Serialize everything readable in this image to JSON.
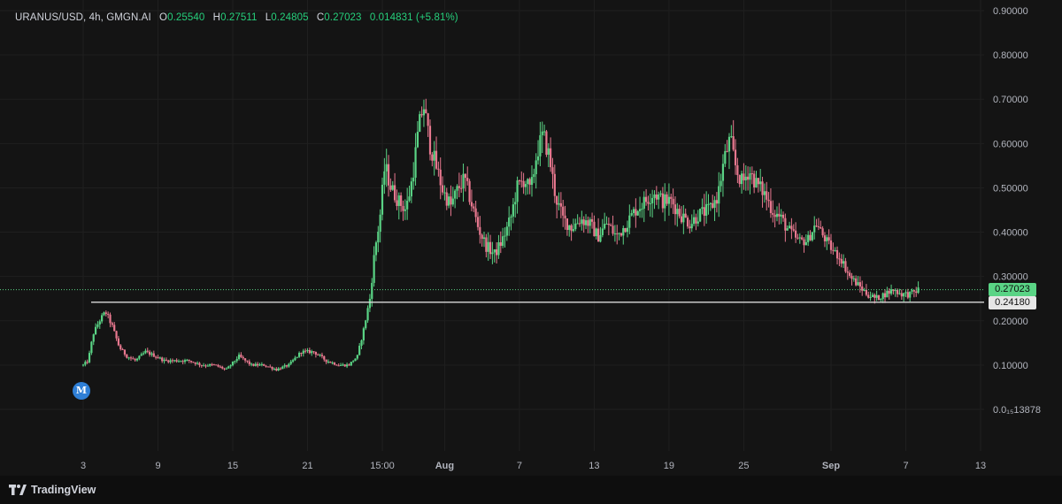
{
  "header": {
    "symbol": "URANUS/USD, 4h, GMGN.AI",
    "open_label": "O",
    "open_value": "0.25540",
    "high_label": "H",
    "high_value": "0.27511",
    "low_label": "L",
    "low_value": "0.24805",
    "close_label": "C",
    "close_value": "0.27023",
    "change_value": "0.014831 (+5.81%)"
  },
  "price_tags": {
    "current": "0.27023",
    "level": "0.24180"
  },
  "marker": {
    "label": "M"
  },
  "footer": {
    "brand": "TradingView",
    "logo_icon": "tradingview-logo-icon"
  },
  "colors": {
    "up": "#5ad485",
    "down": "#e8788f",
    "background": "#141414",
    "grid": "#1f1f1f",
    "level_line": "#d9d9d9",
    "marker": "#2f7fd6"
  },
  "chart_data": {
    "type": "candlestick",
    "timeframe": "4h",
    "ylim": [
      0.05,
      0.9
    ],
    "y_ticks": [
      {
        "value": 0.9,
        "label": "0.90000"
      },
      {
        "value": 0.8,
        "label": "0.80000"
      },
      {
        "value": 0.7,
        "label": "0.70000"
      },
      {
        "value": 0.6,
        "label": "0.60000"
      },
      {
        "value": 0.5,
        "label": "0.50000"
      },
      {
        "value": 0.4,
        "label": "0.40000"
      },
      {
        "value": 0.3,
        "label": "0.30000"
      },
      {
        "value": 0.2,
        "label": "0.20000"
      },
      {
        "value": 0.1,
        "label": "0.10000"
      },
      {
        "value": 0.0,
        "label": "0.0₁₅13878"
      }
    ],
    "x_ticks": [
      {
        "day": 3,
        "label": "3"
      },
      {
        "day": 9,
        "label": "9"
      },
      {
        "day": 15,
        "label": "15"
      },
      {
        "day": 21,
        "label": "21"
      },
      {
        "day": 27,
        "label": "15:00"
      },
      {
        "day": 32,
        "label": "Aug"
      },
      {
        "day": 38,
        "label": "7"
      },
      {
        "day": 44,
        "label": "13"
      },
      {
        "day": 50,
        "label": "19"
      },
      {
        "day": 56,
        "label": "25"
      },
      {
        "day": 63,
        "label": "Sep"
      },
      {
        "day": 69,
        "label": "7"
      },
      {
        "day": 75,
        "label": "13"
      }
    ],
    "bold_ticks": [
      "Aug",
      "Sep"
    ],
    "xlim": [
      3,
      75
    ],
    "price_path": [
      [
        3.0,
        0.1
      ],
      [
        3.4,
        0.11
      ],
      [
        3.8,
        0.17
      ],
      [
        4.3,
        0.2
      ],
      [
        4.8,
        0.22
      ],
      [
        5.3,
        0.19
      ],
      [
        5.9,
        0.14
      ],
      [
        6.5,
        0.12
      ],
      [
        7.2,
        0.11
      ],
      [
        8.0,
        0.13
      ],
      [
        8.8,
        0.12
      ],
      [
        9.5,
        0.11
      ],
      [
        10.5,
        0.11
      ],
      [
        11.5,
        0.11
      ],
      [
        12.5,
        0.1
      ],
      [
        13.5,
        0.1
      ],
      [
        14.5,
        0.09
      ],
      [
        15.5,
        0.12
      ],
      [
        16.5,
        0.1
      ],
      [
        17.5,
        0.1
      ],
      [
        18.5,
        0.09
      ],
      [
        19.5,
        0.1
      ],
      [
        20.5,
        0.13
      ],
      [
        21.5,
        0.13
      ],
      [
        22.5,
        0.11
      ],
      [
        23.5,
        0.1
      ],
      [
        24.3,
        0.1
      ],
      [
        25.0,
        0.12
      ],
      [
        25.5,
        0.18
      ],
      [
        26.0,
        0.25
      ],
      [
        26.4,
        0.36
      ],
      [
        26.8,
        0.43
      ],
      [
        27.2,
        0.55
      ],
      [
        27.7,
        0.5
      ],
      [
        28.3,
        0.47
      ],
      [
        28.9,
        0.45
      ],
      [
        29.4,
        0.52
      ],
      [
        29.9,
        0.63
      ],
      [
        30.3,
        0.69
      ],
      [
        30.8,
        0.6
      ],
      [
        31.3,
        0.55
      ],
      [
        31.9,
        0.49
      ],
      [
        32.5,
        0.46
      ],
      [
        33.1,
        0.5
      ],
      [
        33.6,
        0.52
      ],
      [
        34.2,
        0.46
      ],
      [
        34.7,
        0.41
      ],
      [
        35.3,
        0.37
      ],
      [
        36.0,
        0.35
      ],
      [
        36.6,
        0.38
      ],
      [
        37.3,
        0.43
      ],
      [
        37.8,
        0.5
      ],
      [
        38.4,
        0.52
      ],
      [
        38.9,
        0.49
      ],
      [
        39.4,
        0.58
      ],
      [
        39.9,
        0.62
      ],
      [
        40.4,
        0.57
      ],
      [
        40.9,
        0.48
      ],
      [
        41.5,
        0.43
      ],
      [
        42.2,
        0.41
      ],
      [
        42.9,
        0.43
      ],
      [
        43.6,
        0.42
      ],
      [
        44.3,
        0.39
      ],
      [
        45.0,
        0.42
      ],
      [
        45.8,
        0.39
      ],
      [
        46.6,
        0.42
      ],
      [
        47.3,
        0.45
      ],
      [
        48.1,
        0.47
      ],
      [
        48.8,
        0.49
      ],
      [
        49.5,
        0.47
      ],
      [
        50.2,
        0.47
      ],
      [
        50.9,
        0.44
      ],
      [
        51.7,
        0.42
      ],
      [
        52.4,
        0.44
      ],
      [
        53.2,
        0.45
      ],
      [
        53.9,
        0.48
      ],
      [
        54.4,
        0.56
      ],
      [
        54.9,
        0.61
      ],
      [
        55.4,
        0.54
      ],
      [
        55.9,
        0.51
      ],
      [
        56.4,
        0.54
      ],
      [
        57.0,
        0.51
      ],
      [
        57.6,
        0.49
      ],
      [
        58.3,
        0.45
      ],
      [
        59.0,
        0.43
      ],
      [
        59.7,
        0.4
      ],
      [
        60.4,
        0.38
      ],
      [
        61.1,
        0.38
      ],
      [
        61.8,
        0.42
      ],
      [
        62.4,
        0.39
      ],
      [
        63.1,
        0.36
      ],
      [
        63.8,
        0.34
      ],
      [
        64.5,
        0.3
      ],
      [
        65.2,
        0.28
      ],
      [
        65.9,
        0.26
      ],
      [
        66.6,
        0.25
      ],
      [
        67.3,
        0.26
      ],
      [
        68.0,
        0.27
      ],
      [
        68.7,
        0.26
      ],
      [
        69.4,
        0.26
      ],
      [
        70.0,
        0.27
      ]
    ],
    "horizontal_line": 0.2418,
    "current_price": 0.27023
  }
}
